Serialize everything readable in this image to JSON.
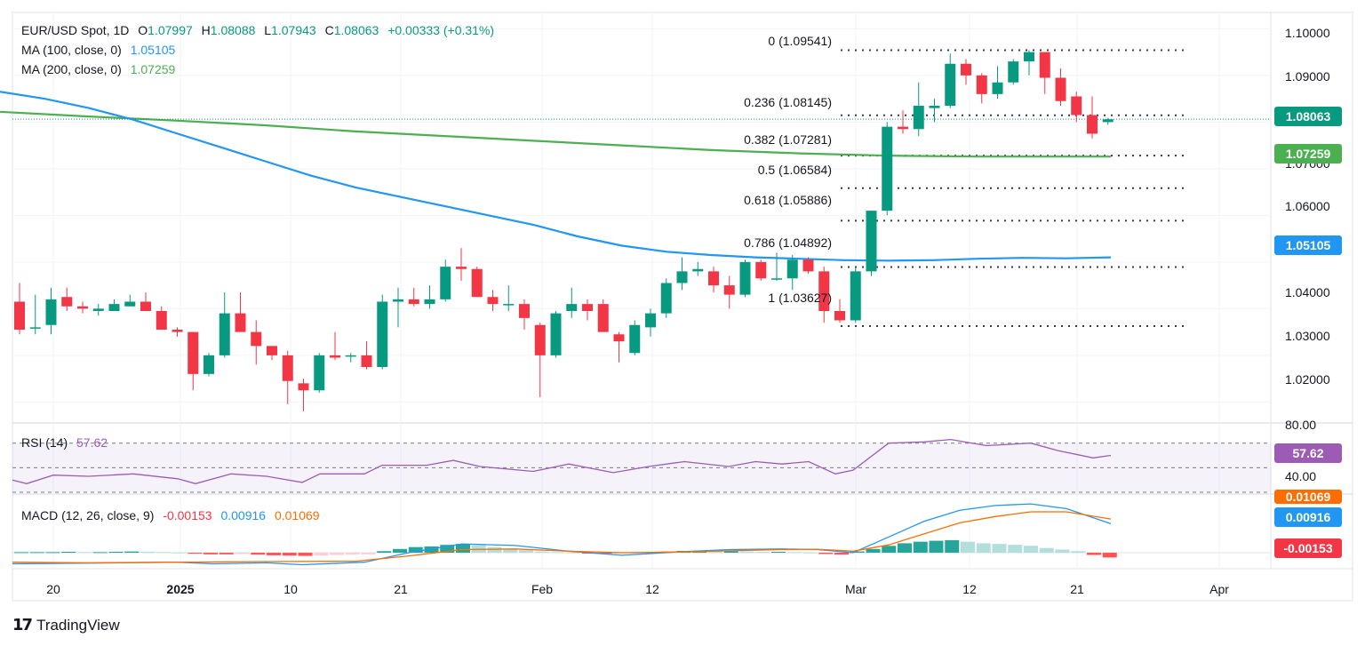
{
  "header": {
    "symbol": "EUR/USD Spot, 1D",
    "open_label": "O",
    "open": "1.07997",
    "high_label": "H",
    "high": "1.08088",
    "low_label": "L",
    "low": "1.07943",
    "close_label": "C",
    "close": "1.08063",
    "change": "+0.00333 (+0.31%)",
    "ma100_label": "MA (100, close, 0)",
    "ma100_value": "1.05105",
    "ma200_label": "MA (200, close, 0)",
    "ma200_value": "1.07259"
  },
  "price_axis": {
    "ticks": [
      "1.10000",
      "1.09000",
      "1.07000",
      "1.06000",
      "1.04000",
      "1.03000",
      "1.02000"
    ],
    "last_price_tag": "1.08063",
    "ma200_tag": "1.07259",
    "ma100_tag": "1.05105"
  },
  "fib_levels": [
    {
      "label": "0 (1.09541)",
      "value": 1.09541
    },
    {
      "label": "0.236 (1.08145)",
      "value": 1.08145
    },
    {
      "label": "0.382 (1.07281)",
      "value": 1.07281
    },
    {
      "label": "0.5 (1.06584)",
      "value": 1.06584
    },
    {
      "label": "0.618 (1.05886)",
      "value": 1.05886
    },
    {
      "label": "0.786 (1.04892)",
      "value": 1.04892
    },
    {
      "label": "1 (1.03627)",
      "value": 1.03627
    }
  ],
  "rsi": {
    "label": "RSI (14)",
    "value": "57.62",
    "axis_top": "80.00",
    "axis_bottom": "40.00",
    "tag": "57.62"
  },
  "macd": {
    "label": "MACD (12, 26, close, 9)",
    "hist": "-0.00153",
    "macd": "0.00916",
    "signal": "0.01069",
    "tags": [
      "0.01069",
      "0.00916",
      "-0.00153"
    ]
  },
  "x_axis": {
    "labels": [
      {
        "text": "20",
        "bold": false
      },
      {
        "text": "2025",
        "bold": true
      },
      {
        "text": "10",
        "bold": false
      },
      {
        "text": "21",
        "bold": false
      },
      {
        "text": "Feb",
        "bold": false
      },
      {
        "text": "12",
        "bold": false
      },
      {
        "text": "Mar",
        "bold": false
      },
      {
        "text": "12",
        "bold": false
      },
      {
        "text": "21",
        "bold": false
      },
      {
        "text": "Apr",
        "bold": false
      }
    ]
  },
  "brand": "TradingView",
  "colors": {
    "up": "#089981",
    "down": "#f23645",
    "ma100": "#2196f3",
    "ma200": "#4caf50",
    "rsi": "#9c5cb5",
    "macd": "#2196f3",
    "signal": "#ff6d00",
    "fib": "#3a3a3a"
  },
  "chart_data": {
    "type": "candlestick",
    "title": "EUR/USD Spot, 1D",
    "ylim": [
      1.0155,
      1.1035
    ],
    "candles": [
      {
        "o": 1.0415,
        "h": 1.0455,
        "l": 1.0345,
        "c": 1.0355
      },
      {
        "o": 1.036,
        "h": 1.043,
        "l": 1.0345,
        "c": 1.036
      },
      {
        "o": 1.0365,
        "h": 1.0445,
        "l": 1.0345,
        "c": 1.042
      },
      {
        "o": 1.0425,
        "h": 1.0445,
        "l": 1.0395,
        "c": 1.0405
      },
      {
        "o": 1.0405,
        "h": 1.0415,
        "l": 1.039,
        "c": 1.04
      },
      {
        "o": 1.0395,
        "h": 1.041,
        "l": 1.0385,
        "c": 1.04
      },
      {
        "o": 1.0395,
        "h": 1.042,
        "l": 1.0395,
        "c": 1.041
      },
      {
        "o": 1.0405,
        "h": 1.043,
        "l": 1.0405,
        "c": 1.0415
      },
      {
        "o": 1.0415,
        "h": 1.0435,
        "l": 1.0395,
        "c": 1.0395
      },
      {
        "o": 1.0395,
        "h": 1.0405,
        "l": 1.0355,
        "c": 1.0355
      },
      {
        "o": 1.0355,
        "h": 1.036,
        "l": 1.034,
        "c": 1.035
      },
      {
        "o": 1.035,
        "h": 1.035,
        "l": 1.0225,
        "c": 1.026
      },
      {
        "o": 1.026,
        "h": 1.0305,
        "l": 1.0255,
        "c": 1.03
      },
      {
        "o": 1.03,
        "h": 1.0435,
        "l": 1.0295,
        "c": 1.039
      },
      {
        "o": 1.039,
        "h": 1.0435,
        "l": 1.035,
        "c": 1.035
      },
      {
        "o": 1.035,
        "h": 1.0375,
        "l": 1.028,
        "c": 1.032
      },
      {
        "o": 1.032,
        "h": 1.032,
        "l": 1.029,
        "c": 1.03
      },
      {
        "o": 1.03,
        "h": 1.031,
        "l": 1.0195,
        "c": 1.0245
      },
      {
        "o": 1.024,
        "h": 1.025,
        "l": 1.018,
        "c": 1.0225
      },
      {
        "o": 1.0225,
        "h": 1.0305,
        "l": 1.022,
        "c": 1.03
      },
      {
        "o": 1.03,
        "h": 1.035,
        "l": 1.029,
        "c": 1.0295
      },
      {
        "o": 1.03,
        "h": 1.0305,
        "l": 1.0285,
        "c": 1.03
      },
      {
        "o": 1.03,
        "h": 1.033,
        "l": 1.027,
        "c": 1.0275
      },
      {
        "o": 1.0275,
        "h": 1.043,
        "l": 1.027,
        "c": 1.0415
      },
      {
        "o": 1.0415,
        "h": 1.0445,
        "l": 1.036,
        "c": 1.042
      },
      {
        "o": 1.042,
        "h": 1.0445,
        "l": 1.0405,
        "c": 1.041
      },
      {
        "o": 1.041,
        "h": 1.045,
        "l": 1.04,
        "c": 1.042
      },
      {
        "o": 1.042,
        "h": 1.0505,
        "l": 1.0415,
        "c": 1.049
      },
      {
        "o": 1.049,
        "h": 1.053,
        "l": 1.046,
        "c": 1.0485
      },
      {
        "o": 1.0485,
        "h": 1.049,
        "l": 1.0425,
        "c": 1.0425
      },
      {
        "o": 1.0425,
        "h": 1.044,
        "l": 1.0395,
        "c": 1.041
      },
      {
        "o": 1.041,
        "h": 1.045,
        "l": 1.0395,
        "c": 1.041
      },
      {
        "o": 1.041,
        "h": 1.042,
        "l": 1.0355,
        "c": 1.038
      },
      {
        "o": 1.0365,
        "h": 1.037,
        "l": 1.021,
        "c": 1.03
      },
      {
        "o": 1.03,
        "h": 1.0395,
        "l": 1.0295,
        "c": 1.039
      },
      {
        "o": 1.0395,
        "h": 1.0445,
        "l": 1.038,
        "c": 1.041
      },
      {
        "o": 1.041,
        "h": 1.042,
        "l": 1.0375,
        "c": 1.0395
      },
      {
        "o": 1.041,
        "h": 1.042,
        "l": 1.035,
        "c": 1.035
      },
      {
        "o": 1.0345,
        "h": 1.035,
        "l": 1.0285,
        "c": 1.033
      },
      {
        "o": 1.0305,
        "h": 1.0375,
        "l": 1.03,
        "c": 1.0365
      },
      {
        "o": 1.036,
        "h": 1.04,
        "l": 1.034,
        "c": 1.039
      },
      {
        "o": 1.039,
        "h": 1.0465,
        "l": 1.038,
        "c": 1.0455
      },
      {
        "o": 1.0455,
        "h": 1.051,
        "l": 1.044,
        "c": 1.048
      },
      {
        "o": 1.048,
        "h": 1.05,
        "l": 1.047,
        "c": 1.0485
      },
      {
        "o": 1.048,
        "h": 1.049,
        "l": 1.0435,
        "c": 1.045
      },
      {
        "o": 1.045,
        "h": 1.047,
        "l": 1.04,
        "c": 1.043
      },
      {
        "o": 1.043,
        "h": 1.0505,
        "l": 1.0425,
        "c": 1.05
      },
      {
        "o": 1.05,
        "h": 1.0505,
        "l": 1.046,
        "c": 1.0465
      },
      {
        "o": 1.0465,
        "h": 1.052,
        "l": 1.046,
        "c": 1.0465
      },
      {
        "o": 1.0465,
        "h": 1.0515,
        "l": 1.044,
        "c": 1.0505
      },
      {
        "o": 1.0505,
        "h": 1.051,
        "l": 1.0475,
        "c": 1.048
      },
      {
        "o": 1.048,
        "h": 1.049,
        "l": 1.037,
        "c": 1.0395
      },
      {
        "o": 1.0395,
        "h": 1.042,
        "l": 1.037,
        "c": 1.0375
      },
      {
        "o": 1.0375,
        "h": 1.049,
        "l": 1.037,
        "c": 1.048
      },
      {
        "o": 1.048,
        "h": 1.061,
        "l": 1.047,
        "c": 1.061
      },
      {
        "o": 1.061,
        "h": 1.08,
        "l": 1.06,
        "c": 1.079
      },
      {
        "o": 1.079,
        "h": 1.0825,
        "l": 1.0775,
        "c": 1.0785
      },
      {
        "o": 1.0785,
        "h": 1.0885,
        "l": 1.077,
        "c": 1.0835
      },
      {
        "o": 1.083,
        "h": 1.085,
        "l": 1.08,
        "c": 1.0835
      },
      {
        "o": 1.0835,
        "h": 1.0947,
        "l": 1.083,
        "c": 1.0925
      },
      {
        "o": 1.0925,
        "h": 1.0935,
        "l": 1.088,
        "c": 1.09
      },
      {
        "o": 1.09,
        "h": 1.0905,
        "l": 1.084,
        "c": 1.086
      },
      {
        "o": 1.086,
        "h": 1.092,
        "l": 1.085,
        "c": 1.0885
      },
      {
        "o": 1.0885,
        "h": 1.0935,
        "l": 1.088,
        "c": 1.093
      },
      {
        "o": 1.093,
        "h": 1.0954,
        "l": 1.09,
        "c": 1.095
      },
      {
        "o": 1.095,
        "h": 1.095,
        "l": 1.086,
        "c": 1.0895
      },
      {
        "o": 1.0895,
        "h": 1.0915,
        "l": 1.0835,
        "c": 1.0845
      },
      {
        "o": 1.0855,
        "h": 1.0865,
        "l": 1.08,
        "c": 1.0815
      },
      {
        "o": 1.0815,
        "h": 1.0855,
        "l": 1.0765,
        "c": 1.0775
      },
      {
        "o": 1.08,
        "h": 1.0809,
        "l": 1.0794,
        "c": 1.0806
      }
    ],
    "ma100": [
      [
        0,
        1.0865
      ],
      [
        50,
        1.085
      ],
      [
        100,
        1.083
      ],
      [
        150,
        1.0805
      ],
      [
        200,
        1.0775
      ],
      [
        250,
        1.0745
      ],
      [
        300,
        1.0715
      ],
      [
        350,
        1.0685
      ],
      [
        400,
        1.066
      ],
      [
        450,
        1.064
      ],
      [
        500,
        1.062
      ],
      [
        550,
        1.06
      ],
      [
        600,
        1.058
      ],
      [
        650,
        1.0555
      ],
      [
        700,
        1.0535
      ],
      [
        750,
        1.0522
      ],
      [
        800,
        1.0515
      ],
      [
        850,
        1.051
      ],
      [
        900,
        1.0507
      ],
      [
        950,
        1.0504
      ],
      [
        1000,
        1.0503
      ],
      [
        1050,
        1.0504
      ],
      [
        1100,
        1.0507
      ],
      [
        1150,
        1.0509
      ],
      [
        1200,
        1.0508
      ],
      [
        1250,
        1.051
      ]
    ],
    "ma200": [
      [
        0,
        1.0822
      ],
      [
        100,
        1.0812
      ],
      [
        200,
        1.0803
      ],
      [
        300,
        1.0793
      ],
      [
        400,
        1.078
      ],
      [
        500,
        1.077
      ],
      [
        600,
        1.076
      ],
      [
        700,
        1.075
      ],
      [
        800,
        1.074
      ],
      [
        900,
        1.0733
      ],
      [
        1000,
        1.0728
      ],
      [
        1100,
        1.0726
      ],
      [
        1250,
        1.0726
      ]
    ],
    "rsi": [
      [
        14,
        40
      ],
      [
        30,
        37
      ],
      [
        60,
        44
      ],
      [
        100,
        43
      ],
      [
        150,
        45
      ],
      [
        200,
        41
      ],
      [
        220,
        37
      ],
      [
        260,
        45
      ],
      [
        300,
        43
      ],
      [
        340,
        38
      ],
      [
        360,
        45
      ],
      [
        410,
        45
      ],
      [
        430,
        52
      ],
      [
        480,
        52
      ],
      [
        510,
        56
      ],
      [
        540,
        51
      ],
      [
        600,
        47
      ],
      [
        640,
        53
      ],
      [
        690,
        46
      ],
      [
        730,
        51
      ],
      [
        770,
        55
      ],
      [
        820,
        51
      ],
      [
        850,
        55
      ],
      [
        880,
        53
      ],
      [
        910,
        55
      ],
      [
        940,
        45
      ],
      [
        960,
        48
      ],
      [
        1000,
        70
      ],
      [
        1040,
        71
      ],
      [
        1070,
        73
      ],
      [
        1110,
        68
      ],
      [
        1160,
        70
      ],
      [
        1190,
        64
      ],
      [
        1230,
        58
      ],
      [
        1250,
        60
      ]
    ],
    "macd_line": [
      [
        14,
        -0.0035
      ],
      [
        100,
        -0.0033
      ],
      [
        200,
        -0.003
      ],
      [
        240,
        -0.0035
      ],
      [
        300,
        -0.0032
      ],
      [
        340,
        -0.0038
      ],
      [
        410,
        -0.003
      ],
      [
        460,
        0.0
      ],
      [
        520,
        0.0028
      ],
      [
        580,
        0.0023
      ],
      [
        640,
        0.0005
      ],
      [
        700,
        -0.0008
      ],
      [
        760,
        0.0002
      ],
      [
        820,
        0.001
      ],
      [
        880,
        0.0012
      ],
      [
        920,
        0.001
      ],
      [
        960,
        0.0
      ],
      [
        1000,
        0.005
      ],
      [
        1040,
        0.01
      ],
      [
        1080,
        0.0135
      ],
      [
        1120,
        0.015
      ],
      [
        1160,
        0.0155
      ],
      [
        1200,
        0.014
      ],
      [
        1250,
        0.0092
      ]
    ],
    "signal_line": [
      [
        14,
        -0.003
      ],
      [
        100,
        -0.0032
      ],
      [
        200,
        -0.003
      ],
      [
        300,
        -0.0028
      ],
      [
        400,
        -0.0027
      ],
      [
        460,
        -0.001
      ],
      [
        520,
        0.001
      ],
      [
        580,
        0.0012
      ],
      [
        640,
        0.0005
      ],
      [
        700,
        0.0
      ],
      [
        760,
        0.0002
      ],
      [
        820,
        0.0006
      ],
      [
        880,
        0.001
      ],
      [
        920,
        0.0011
      ],
      [
        960,
        0.0005
      ],
      [
        1000,
        0.0025
      ],
      [
        1040,
        0.006
      ],
      [
        1080,
        0.0095
      ],
      [
        1120,
        0.0115
      ],
      [
        1160,
        0.013
      ],
      [
        1200,
        0.013
      ],
      [
        1250,
        0.0107
      ]
    ],
    "macd_hist": [
      0.0002,
      0.0002,
      0.0002,
      0.0003,
      0.0002,
      0.0002,
      0.0003,
      0.0004,
      0.0003,
      0.0002,
      0.0001,
      -0.0003,
      -0.0005,
      -0.0005,
      -0.0004,
      -0.0006,
      -0.0008,
      -0.0009,
      -0.001,
      -0.0009,
      -0.0007,
      -0.0006,
      -0.0005,
      0.0005,
      0.0012,
      0.0018,
      0.002,
      0.0025,
      0.0028,
      0.0024,
      0.0018,
      0.0013,
      0.0008,
      0.0004,
      0.0002,
      0.0001,
      -0.0001,
      -0.0003,
      -0.0002,
      -0.0001,
      0.0002,
      0.0004,
      0.0006,
      0.0006,
      0.0005,
      0.0005,
      0.0004,
      0.0003,
      0.0003,
      0.0002,
      0.0001,
      -0.0004,
      -0.0006,
      0.0004,
      0.0012,
      0.0022,
      0.003,
      0.0035,
      0.0038,
      0.004,
      0.0035,
      0.003,
      0.0028,
      0.0025,
      0.0022,
      0.0015,
      0.001,
      0.0005,
      -0.0007,
      -0.0015
    ]
  }
}
